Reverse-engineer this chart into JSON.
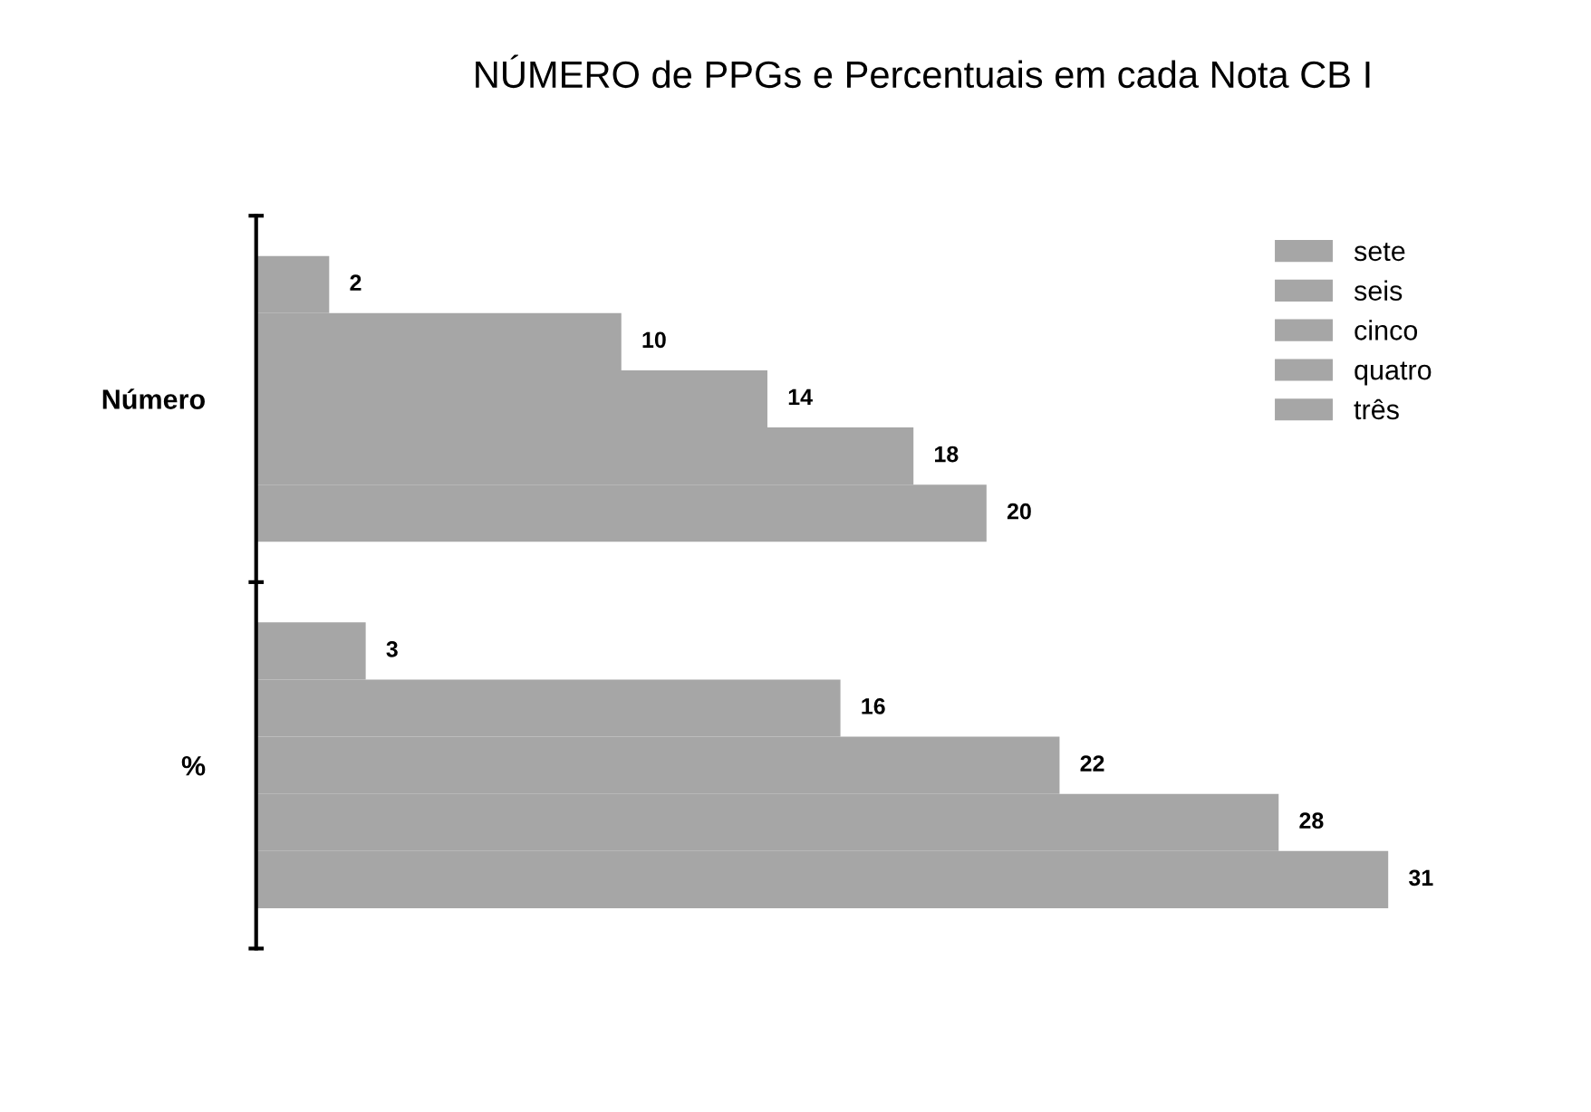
{
  "chart_data": {
    "type": "bar",
    "orientation": "horizontal",
    "title": "NÚMERO de PPGs e Percentuais em cada Nota CB I",
    "categories": [
      "Número",
      "%"
    ],
    "series": [
      {
        "name": "sete",
        "color": "#a6a6a6",
        "values": [
          2,
          3
        ]
      },
      {
        "name": "seis",
        "color": "#a6a6a6",
        "values": [
          10,
          16
        ]
      },
      {
        "name": "cinco",
        "color": "#a6a6a6",
        "values": [
          14,
          22
        ]
      },
      {
        "name": "quatro",
        "color": "#a6a6a6",
        "values": [
          18,
          28
        ]
      },
      {
        "name": "três",
        "color": "#a6a6a6",
        "values": [
          20,
          31
        ]
      }
    ],
    "data_labels": true,
    "legend": "top right",
    "grid": false,
    "tick_labels": "y"
  }
}
